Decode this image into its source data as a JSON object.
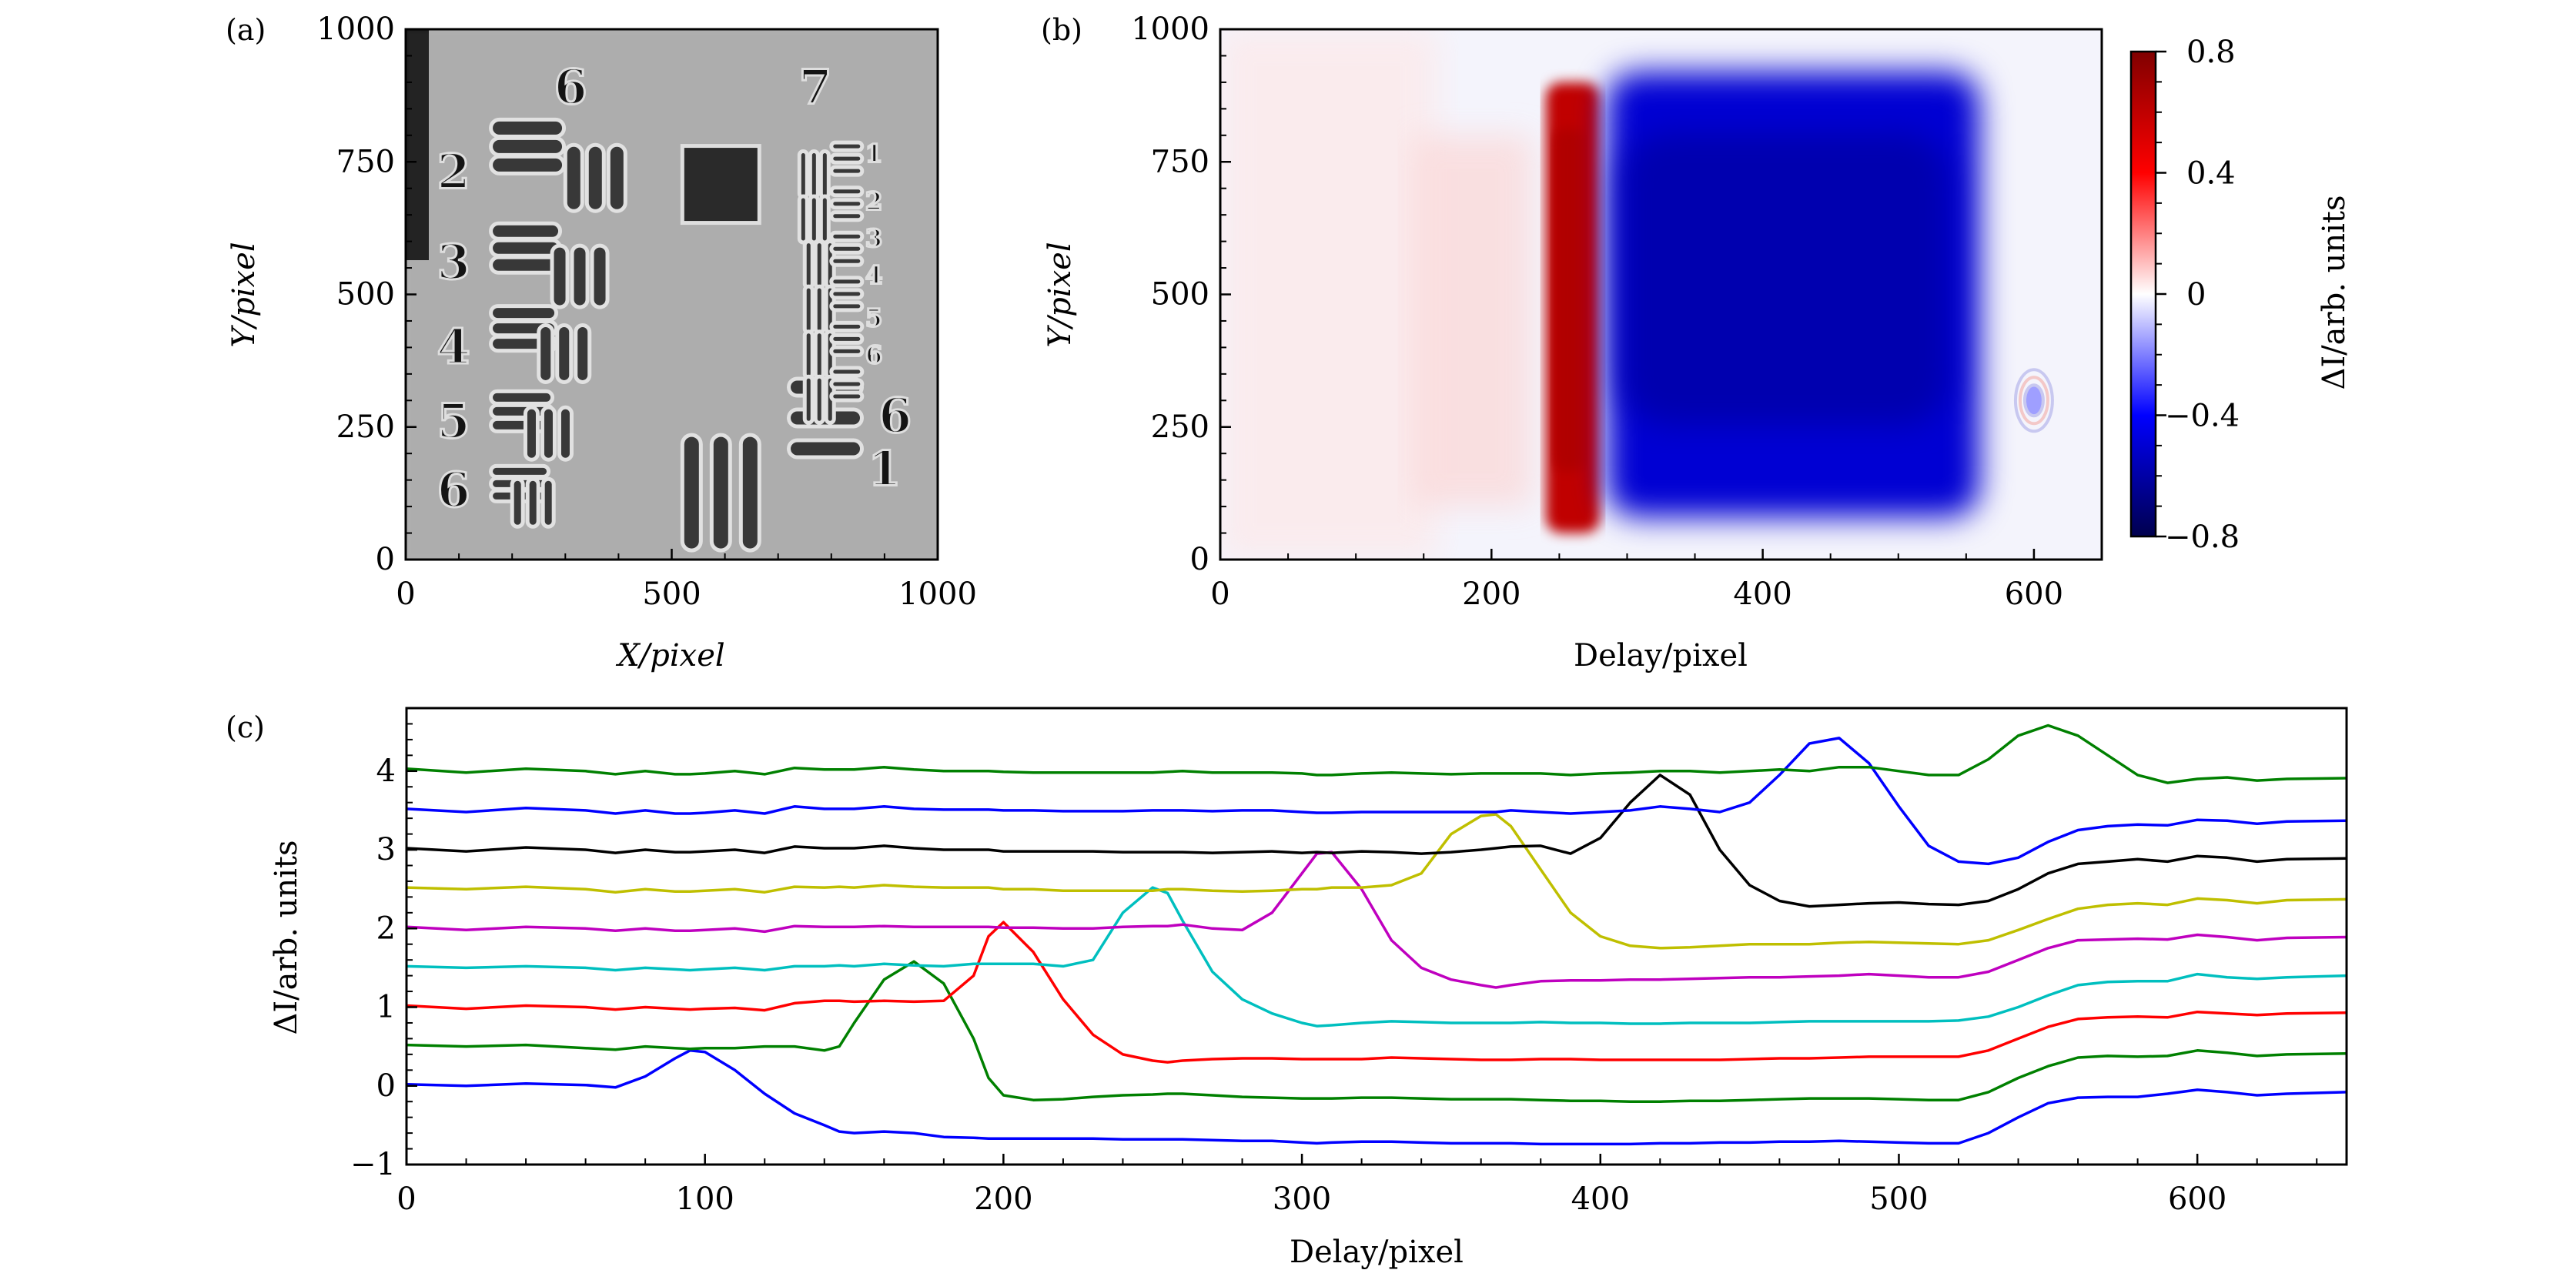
{
  "chart_data": [
    {
      "panel": "(a)",
      "type": "heatmap",
      "description": "Grayscale transmission image of a USAF resolution test target (groups 6 and 7)",
      "xlabel": "X/pixel",
      "ylabel": "Y/pixel",
      "xlim": [
        0,
        1000
      ],
      "ylim": [
        0,
        1000
      ],
      "xticks": [
        0,
        500,
        1000
      ],
      "yticks": [
        0,
        250,
        500,
        750,
        1000
      ],
      "target_labels": [
        "6",
        "7",
        "2",
        "3",
        "4",
        "5",
        "6",
        "6",
        "1",
        "1",
        "2",
        "3",
        "4",
        "5",
        "6"
      ]
    },
    {
      "panel": "(b)",
      "type": "heatmap",
      "description": "Differential intensity map: red band near delay 240-280, blue region delay 290-560, Y 100-900",
      "xlabel": "Delay/pixel",
      "ylabel": "Y/pixel",
      "xlim": [
        0,
        650
      ],
      "ylim": [
        0,
        1000
      ],
      "xticks": [
        0,
        200,
        400,
        600
      ],
      "yticks": [
        0,
        250,
        500,
        750,
        1000
      ],
      "colorbar": {
        "label": "ΔI/arb. units",
        "range": [
          -0.8,
          0.8
        ],
        "ticks": [
          0.8,
          0.4,
          0,
          -0.4,
          -0.8
        ],
        "tick_labels": [
          "0.8",
          "0.4",
          "0",
          "−0.4",
          "−0.8"
        ],
        "colormap": [
          "#00004d",
          "#0000ff",
          "#ffffff",
          "#ff0000",
          "#800000"
        ]
      },
      "features": [
        {
          "name": "red-band",
          "delay": [
            240,
            280
          ],
          "y": [
            50,
            900
          ],
          "value": 0.6
        },
        {
          "name": "blue-region",
          "delay": [
            285,
            560
          ],
          "y": [
            80,
            920
          ],
          "value": -0.5
        },
        {
          "name": "ring-artifact",
          "delay": 600,
          "y": 300,
          "value": -0.15
        }
      ]
    },
    {
      "panel": "(c)",
      "type": "line",
      "xlabel": "Delay/pixel",
      "ylabel": "ΔI/arb. units",
      "xlim": [
        0,
        650
      ],
      "ylim": [
        -1,
        4.8
      ],
      "xticks": [
        0,
        100,
        200,
        300,
        400,
        500,
        600
      ],
      "yticks": [
        -1,
        0,
        1,
        2,
        3,
        4
      ],
      "ytick_labels": [
        "−1",
        "0",
        "1",
        "2",
        "3",
        "4"
      ],
      "x": [
        0,
        20,
        40,
        60,
        70,
        80,
        90,
        95,
        100,
        110,
        120,
        130,
        140,
        145,
        150,
        160,
        170,
        180,
        190,
        195,
        200,
        210,
        220,
        230,
        240,
        250,
        255,
        260,
        270,
        280,
        290,
        300,
        305,
        310,
        320,
        330,
        340,
        350,
        360,
        365,
        370,
        380,
        390,
        400,
        410,
        420,
        430,
        440,
        450,
        460,
        470,
        480,
        490,
        500,
        510,
        520,
        530,
        540,
        550,
        560,
        570,
        580,
        590,
        600,
        610,
        620,
        630,
        650
      ],
      "series": [
        {
          "name": "trace-1",
          "color": "#0000ff",
          "offset": 0.0,
          "values": [
            0.02,
            0.0,
            0.03,
            0.01,
            -0.02,
            0.12,
            0.35,
            0.45,
            0.43,
            0.2,
            -0.1,
            -0.35,
            -0.5,
            -0.58,
            -0.6,
            -0.58,
            -0.6,
            -0.65,
            -0.66,
            -0.67,
            -0.67,
            -0.67,
            -0.67,
            -0.67,
            -0.68,
            -0.68,
            -0.68,
            -0.68,
            -0.69,
            -0.7,
            -0.7,
            -0.72,
            -0.73,
            -0.72,
            -0.71,
            -0.71,
            -0.72,
            -0.73,
            -0.73,
            -0.73,
            -0.73,
            -0.74,
            -0.74,
            -0.74,
            -0.74,
            -0.73,
            -0.73,
            -0.72,
            -0.72,
            -0.71,
            -0.71,
            -0.7,
            -0.71,
            -0.72,
            -0.73,
            -0.73,
            -0.6,
            -0.4,
            -0.22,
            -0.15,
            -0.14,
            -0.14,
            -0.1,
            -0.05,
            -0.08,
            -0.12,
            -0.1,
            -0.08
          ]
        },
        {
          "name": "trace-2",
          "color": "#008000",
          "offset": 0.5,
          "values": [
            0.52,
            0.5,
            0.52,
            0.48,
            0.46,
            0.5,
            0.48,
            0.47,
            0.48,
            0.48,
            0.5,
            0.5,
            0.45,
            0.5,
            0.8,
            1.35,
            1.58,
            1.3,
            0.6,
            0.1,
            -0.12,
            -0.18,
            -0.17,
            -0.14,
            -0.12,
            -0.11,
            -0.1,
            -0.1,
            -0.12,
            -0.14,
            -0.15,
            -0.16,
            -0.16,
            -0.16,
            -0.15,
            -0.15,
            -0.16,
            -0.17,
            -0.17,
            -0.17,
            -0.17,
            -0.18,
            -0.19,
            -0.19,
            -0.2,
            -0.2,
            -0.19,
            -0.19,
            -0.18,
            -0.17,
            -0.16,
            -0.16,
            -0.16,
            -0.17,
            -0.18,
            -0.18,
            -0.08,
            0.1,
            0.25,
            0.36,
            0.38,
            0.37,
            0.38,
            0.45,
            0.42,
            0.38,
            0.4,
            0.41
          ]
        },
        {
          "name": "trace-3",
          "color": "#ff0000",
          "offset": 1.0,
          "values": [
            1.02,
            0.98,
            1.02,
            1.0,
            0.97,
            1.0,
            0.98,
            0.97,
            0.98,
            0.99,
            0.96,
            1.05,
            1.08,
            1.08,
            1.07,
            1.08,
            1.07,
            1.08,
            1.4,
            1.9,
            2.08,
            1.7,
            1.1,
            0.65,
            0.4,
            0.32,
            0.3,
            0.32,
            0.34,
            0.35,
            0.35,
            0.34,
            0.34,
            0.34,
            0.34,
            0.36,
            0.35,
            0.34,
            0.33,
            0.33,
            0.33,
            0.34,
            0.34,
            0.33,
            0.33,
            0.33,
            0.33,
            0.33,
            0.34,
            0.35,
            0.35,
            0.36,
            0.37,
            0.37,
            0.37,
            0.37,
            0.45,
            0.6,
            0.75,
            0.85,
            0.87,
            0.88,
            0.87,
            0.94,
            0.92,
            0.9,
            0.92,
            0.93
          ]
        },
        {
          "name": "trace-4",
          "color": "#00bfbf",
          "offset": 1.5,
          "values": [
            1.52,
            1.5,
            1.52,
            1.5,
            1.47,
            1.5,
            1.48,
            1.47,
            1.48,
            1.5,
            1.47,
            1.52,
            1.52,
            1.53,
            1.52,
            1.55,
            1.53,
            1.52,
            1.55,
            1.55,
            1.55,
            1.55,
            1.52,
            1.6,
            2.2,
            2.52,
            2.45,
            2.1,
            1.45,
            1.1,
            0.92,
            0.8,
            0.76,
            0.77,
            0.8,
            0.82,
            0.81,
            0.8,
            0.8,
            0.8,
            0.8,
            0.81,
            0.8,
            0.8,
            0.79,
            0.79,
            0.8,
            0.8,
            0.8,
            0.81,
            0.82,
            0.82,
            0.82,
            0.82,
            0.82,
            0.83,
            0.88,
            1.0,
            1.15,
            1.28,
            1.32,
            1.33,
            1.33,
            1.42,
            1.38,
            1.36,
            1.38,
            1.4
          ]
        },
        {
          "name": "trace-5",
          "color": "#bf00bf",
          "offset": 2.0,
          "values": [
            2.02,
            1.98,
            2.02,
            2.0,
            1.97,
            2.0,
            1.97,
            1.97,
            1.98,
            2.0,
            1.96,
            2.03,
            2.02,
            2.02,
            2.02,
            2.03,
            2.02,
            2.02,
            2.02,
            2.02,
            2.01,
            2.01,
            2.0,
            2.0,
            2.02,
            2.03,
            2.03,
            2.05,
            2.0,
            1.98,
            2.2,
            2.7,
            2.95,
            2.97,
            2.5,
            1.85,
            1.5,
            1.35,
            1.28,
            1.25,
            1.28,
            1.33,
            1.34,
            1.34,
            1.35,
            1.35,
            1.36,
            1.37,
            1.38,
            1.38,
            1.39,
            1.4,
            1.42,
            1.4,
            1.38,
            1.38,
            1.45,
            1.6,
            1.75,
            1.85,
            1.86,
            1.87,
            1.86,
            1.92,
            1.89,
            1.85,
            1.88,
            1.89
          ]
        },
        {
          "name": "trace-6",
          "color": "#bfbf00",
          "offset": 2.5,
          "values": [
            2.52,
            2.5,
            2.53,
            2.5,
            2.46,
            2.5,
            2.47,
            2.47,
            2.48,
            2.5,
            2.46,
            2.53,
            2.52,
            2.53,
            2.52,
            2.55,
            2.53,
            2.52,
            2.52,
            2.52,
            2.5,
            2.5,
            2.48,
            2.48,
            2.48,
            2.48,
            2.5,
            2.5,
            2.48,
            2.47,
            2.48,
            2.5,
            2.5,
            2.52,
            2.52,
            2.55,
            2.7,
            3.2,
            3.43,
            3.45,
            3.3,
            2.75,
            2.2,
            1.9,
            1.78,
            1.75,
            1.76,
            1.78,
            1.8,
            1.8,
            1.8,
            1.82,
            1.83,
            1.82,
            1.81,
            1.8,
            1.85,
            1.98,
            2.12,
            2.25,
            2.3,
            2.32,
            2.3,
            2.38,
            2.36,
            2.32,
            2.36,
            2.37
          ]
        },
        {
          "name": "trace-7",
          "color": "#000000",
          "offset": 3.0,
          "values": [
            3.02,
            2.98,
            3.03,
            3.0,
            2.96,
            3.0,
            2.97,
            2.97,
            2.98,
            3.0,
            2.96,
            3.04,
            3.02,
            3.02,
            3.02,
            3.05,
            3.02,
            3.0,
            3.0,
            3.0,
            2.98,
            2.98,
            2.98,
            2.98,
            2.97,
            2.97,
            2.97,
            2.97,
            2.96,
            2.97,
            2.98,
            2.96,
            2.97,
            2.96,
            2.98,
            2.97,
            2.95,
            2.97,
            3.0,
            3.02,
            3.04,
            3.05,
            2.95,
            3.15,
            3.6,
            3.95,
            3.7,
            3.0,
            2.55,
            2.35,
            2.28,
            2.3,
            2.32,
            2.33,
            2.31,
            2.3,
            2.35,
            2.5,
            2.7,
            2.82,
            2.85,
            2.88,
            2.85,
            2.92,
            2.9,
            2.85,
            2.88,
            2.89
          ]
        },
        {
          "name": "trace-8",
          "color": "#0000ff",
          "offset": 3.5,
          "values": [
            3.52,
            3.48,
            3.53,
            3.5,
            3.46,
            3.5,
            3.46,
            3.46,
            3.47,
            3.5,
            3.46,
            3.55,
            3.52,
            3.52,
            3.52,
            3.55,
            3.52,
            3.51,
            3.51,
            3.51,
            3.5,
            3.5,
            3.49,
            3.49,
            3.49,
            3.5,
            3.5,
            3.5,
            3.49,
            3.5,
            3.5,
            3.48,
            3.47,
            3.47,
            3.48,
            3.48,
            3.48,
            3.48,
            3.48,
            3.48,
            3.5,
            3.48,
            3.46,
            3.48,
            3.5,
            3.55,
            3.52,
            3.48,
            3.6,
            3.95,
            4.35,
            4.42,
            4.1,
            3.55,
            3.05,
            2.85,
            2.82,
            2.9,
            3.1,
            3.25,
            3.3,
            3.32,
            3.31,
            3.38,
            3.37,
            3.33,
            3.36,
            3.37
          ]
        },
        {
          "name": "trace-9",
          "color": "#008000",
          "offset": 4.0,
          "values": [
            4.03,
            3.98,
            4.03,
            4.0,
            3.96,
            4.0,
            3.96,
            3.96,
            3.97,
            4.0,
            3.96,
            4.04,
            4.02,
            4.02,
            4.02,
            4.05,
            4.02,
            4.0,
            4.0,
            4.0,
            3.99,
            3.98,
            3.98,
            3.98,
            3.98,
            3.98,
            3.99,
            4.0,
            3.98,
            3.98,
            3.98,
            3.97,
            3.95,
            3.95,
            3.97,
            3.98,
            3.97,
            3.96,
            3.97,
            3.97,
            3.97,
            3.97,
            3.95,
            3.97,
            3.98,
            4.0,
            4.0,
            3.98,
            4.0,
            4.02,
            4.0,
            4.05,
            4.05,
            4.0,
            3.95,
            3.95,
            4.15,
            4.45,
            4.58,
            4.45,
            4.2,
            3.95,
            3.85,
            3.9,
            3.92,
            3.88,
            3.9,
            3.91
          ]
        }
      ]
    }
  ],
  "panels": {
    "a_label": "(a)",
    "b_label": "(b)",
    "c_label": "(c)"
  }
}
